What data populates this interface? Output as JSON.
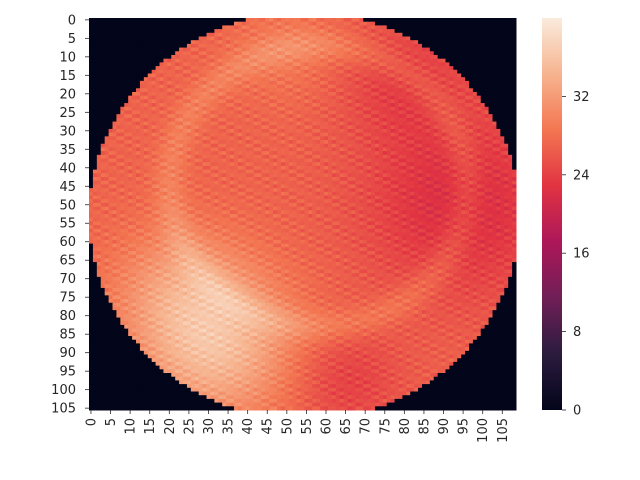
{
  "chart_data": {
    "type": "heatmap",
    "title": "",
    "xlabel": "",
    "ylabel": "",
    "grid": false,
    "n_rows": 106,
    "n_cols": 109,
    "x_ticks": [
      0,
      5,
      10,
      15,
      20,
      25,
      30,
      35,
      40,
      45,
      50,
      55,
      60,
      65,
      70,
      75,
      80,
      85,
      90,
      95,
      100,
      105
    ],
    "x_tick_labels": [
      "0",
      "5",
      "10",
      "15",
      "20",
      "25",
      "30",
      "35",
      "40",
      "45",
      "50",
      "55",
      "60",
      "65",
      "70",
      "75",
      "80",
      "85",
      "90",
      "95",
      "100",
      "105"
    ],
    "y_ticks": [
      0,
      5,
      10,
      15,
      20,
      25,
      30,
      35,
      40,
      45,
      50,
      55,
      60,
      65,
      70,
      75,
      80,
      85,
      90,
      95,
      100,
      105
    ],
    "y_tick_labels": [
      "0",
      "5",
      "10",
      "15",
      "20",
      "25",
      "30",
      "35",
      "40",
      "45",
      "50",
      "55",
      "60",
      "65",
      "70",
      "75",
      "80",
      "85",
      "90",
      "95",
      "100",
      "105"
    ],
    "colorbar": {
      "range": [
        0,
        40
      ],
      "ticks": [
        0,
        8,
        16,
        24,
        32
      ],
      "tick_labels": [
        "0",
        "8",
        "16",
        "24",
        "32"
      ],
      "colormap": "rocket",
      "colormap_stops": [
        "#03051a",
        "#2b1b3e",
        "#701f57",
        "#ad1759",
        "#e13342",
        "#f37651",
        "#f6b48f",
        "#faebdd"
      ]
    },
    "circle": {
      "center_row": 53,
      "center_col": 54.5,
      "radius": 55,
      "outside_value": 0
    },
    "value_model": {
      "base": 27,
      "regions": [
        {
          "name": "bright lower-left",
          "row": 88,
          "col": 32,
          "spread": 14,
          "delta": 8
        },
        {
          "name": "bright left-middle",
          "row": 72,
          "col": 22,
          "spread": 12,
          "delta": 4
        },
        {
          "name": "bright top-center",
          "row": 8,
          "col": 50,
          "spread": 10,
          "delta": 2
        },
        {
          "name": "darker right side",
          "row": 50,
          "col": 95,
          "spread": 18,
          "delta": -5
        },
        {
          "name": "darker upper-right",
          "row": 15,
          "col": 80,
          "spread": 12,
          "delta": -3
        },
        {
          "name": "darker lower-middle",
          "row": 98,
          "col": 65,
          "spread": 10,
          "delta": -3
        }
      ],
      "ring": {
        "row": 45,
        "col": 58,
        "radius": 38,
        "width": 3,
        "delta": 2.5
      }
    }
  }
}
